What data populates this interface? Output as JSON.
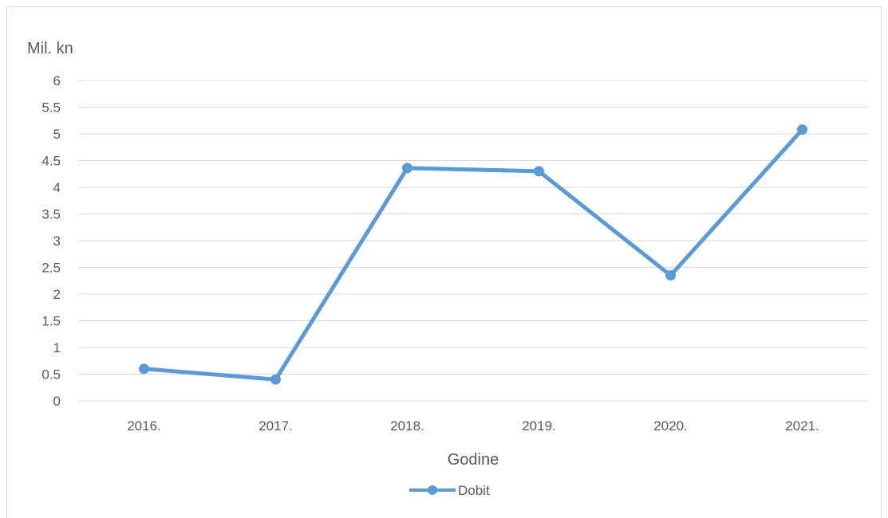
{
  "chart_data": {
    "type": "line",
    "categories": [
      "2016.",
      "2017.",
      "2018.",
      "2019.",
      "2020.",
      "2021."
    ],
    "series": [
      {
        "name": "Dobit",
        "values": [
          0.6,
          0.4,
          4.36,
          4.3,
          2.35,
          5.08
        ],
        "color": "#5b9bd5"
      }
    ],
    "ylabel": "Mil. kn",
    "xlabel": "Godine",
    "ylim": [
      0,
      6
    ],
    "ytick_step": 0.5,
    "ytick_labels": [
      "0",
      "0.5",
      "1",
      "1.5",
      "2",
      "2.5",
      "3",
      "3.5",
      "4",
      "4.5",
      "5",
      "5.5",
      "6"
    ],
    "grid": true,
    "legend_position": "bottom"
  }
}
